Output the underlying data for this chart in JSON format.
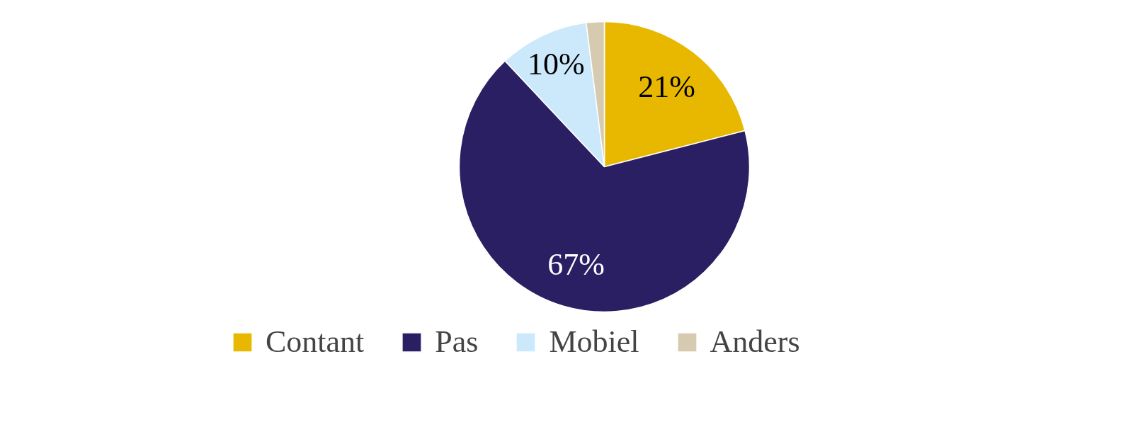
{
  "chart_data": {
    "type": "pie",
    "categories": [
      "Contant",
      "Pas",
      "Mobiel",
      "Anders"
    ],
    "values": [
      21,
      67,
      10,
      2
    ],
    "colors": [
      "#e8b800",
      "#2b1f63",
      "#cce8fb",
      "#d6cbb0"
    ],
    "value_labels": [
      "21%",
      "67%",
      "10%",
      null
    ],
    "legend": "bottom"
  }
}
